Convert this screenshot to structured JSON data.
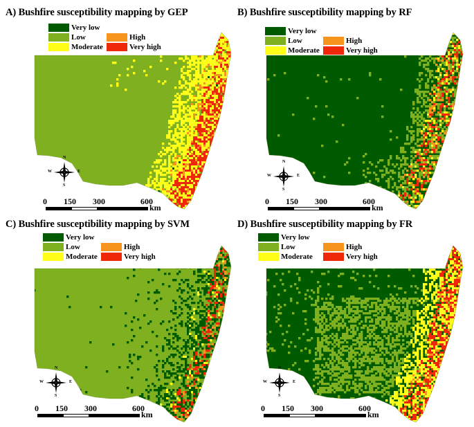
{
  "legend_classes": [
    {
      "key": "very_low",
      "label": "Very low",
      "color": "#005a00"
    },
    {
      "key": "low",
      "label": "Low",
      "color": "#7fb01f"
    },
    {
      "key": "moderate",
      "label": "Moderate",
      "color": "#ffff1a"
    },
    {
      "key": "high",
      "label": "High",
      "color": "#f7941d"
    },
    {
      "key": "very_high",
      "label": "Very high",
      "color": "#f0280a"
    }
  ],
  "colors": {
    "very_low": "#005a00",
    "low": "#7fb01f",
    "moderate": "#ffff1a",
    "high": "#f7941d",
    "very_high": "#f0280a"
  },
  "panels": [
    {
      "id": "A",
      "title": "A) Bushfire susceptibility mapping by GEP",
      "dominant": "low"
    },
    {
      "id": "B",
      "title": "B) Bushfire susceptibility mapping by RF",
      "dominant": "very_low"
    },
    {
      "id": "C",
      "title": "C) Bushfire susceptibility mapping by SVM",
      "dominant": "low"
    },
    {
      "id": "D",
      "title": "D) Bushfire susceptibility mapping by FR",
      "dominant": "very_low"
    }
  ],
  "north_arrow": {
    "n": "N",
    "s": "S",
    "e": "E",
    "w": "W"
  },
  "scale_bar": {
    "ticks": [
      "0",
      "150",
      "300",
      "600"
    ],
    "unit": "km"
  }
}
